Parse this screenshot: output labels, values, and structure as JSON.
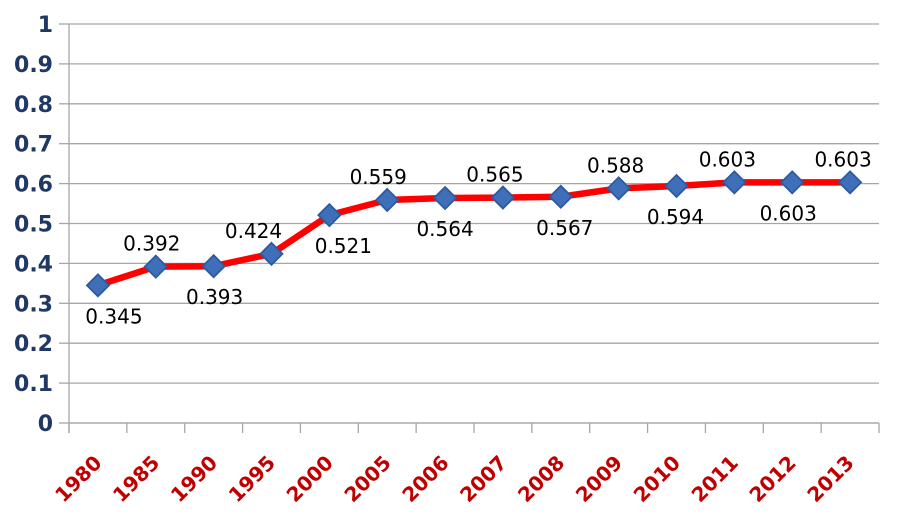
{
  "chart_data": {
    "type": "line",
    "title": "",
    "xlabel": "",
    "ylabel": "",
    "categories": [
      "1980",
      "1985",
      "1990",
      "1995",
      "2000",
      "2005",
      "2006",
      "2007",
      "2008",
      "2009",
      "2010",
      "2011",
      "2012",
      "2013"
    ],
    "series": [
      {
        "name": "",
        "values": [
          0.345,
          0.392,
          0.393,
          0.424,
          0.521,
          0.559,
          0.564,
          0.565,
          0.567,
          0.588,
          0.594,
          0.603,
          0.603,
          0.603
        ]
      }
    ],
    "data_labels": [
      "0.345",
      "0.392",
      "0.393",
      "0.424",
      "0.521",
      "0.559",
      "0.564",
      "0.565",
      "0.567",
      "0.588",
      "0.594",
      "0.603",
      "0.603",
      "0.603"
    ],
    "data_label_positions": [
      "below",
      "above",
      "below",
      "above",
      "below",
      "above",
      "below",
      "above",
      "below",
      "above",
      "below",
      "above",
      "below",
      "above"
    ],
    "data_label_dx": [
      16,
      -4,
      1,
      -18,
      14,
      -9,
      0,
      -8,
      4,
      -3,
      -1,
      -7,
      -4,
      -7
    ],
    "ylim": [
      0,
      1
    ],
    "y_tick_labels": [
      "0",
      "0.1",
      "0.2",
      "0.3",
      "0.4",
      "0.5",
      "0.6",
      "0.7",
      "0.8",
      "0.9",
      "1"
    ],
    "grid": true,
    "legend": "none",
    "x_tick_rotation": -45,
    "colors": {
      "line": "#FE0000",
      "marker_fill": "#3E6FB8",
      "marker_stroke": "#2F5A9E",
      "gridline": "#A6A6A6",
      "y_tick_label": "#1F3864",
      "x_tick_label": "#C00000",
      "data_label": "#000000",
      "background": "#FFFFFF"
    }
  }
}
